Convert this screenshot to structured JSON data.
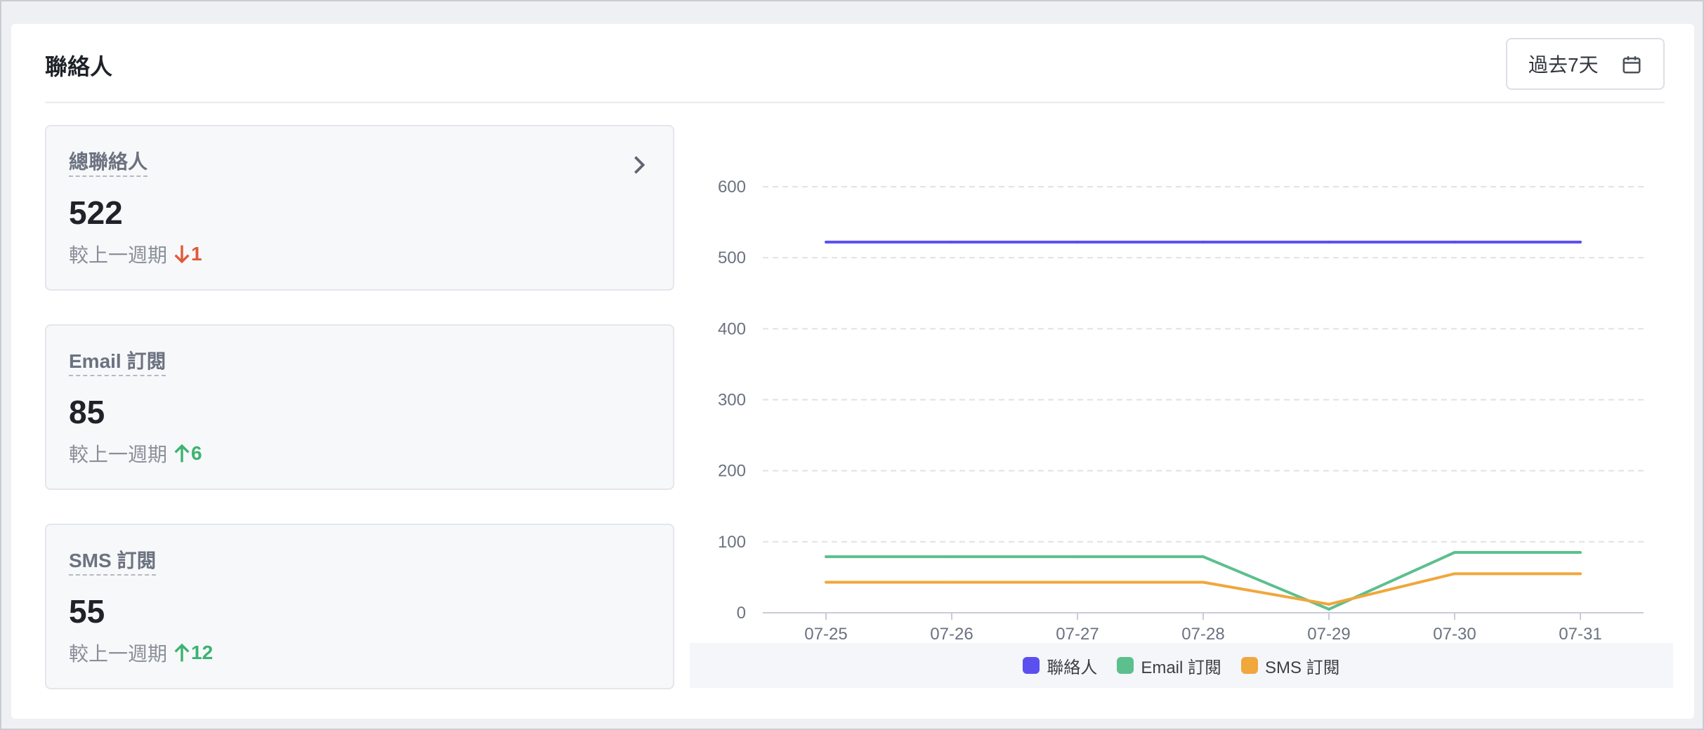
{
  "panel": {
    "title": "聯絡人"
  },
  "range_selector": {
    "label": "過去7天",
    "icon": "calendar-icon"
  },
  "cards": [
    {
      "label": "總聯絡人",
      "value": "522",
      "compare_label": "較上一週期",
      "delta": "1",
      "direction": "down",
      "has_link": true
    },
    {
      "label": "Email 訂閱",
      "value": "85",
      "compare_label": "較上一週期",
      "delta": "6",
      "direction": "up",
      "has_link": false
    },
    {
      "label": "SMS 訂閱",
      "value": "55",
      "compare_label": "較上一週期",
      "delta": "12",
      "direction": "up",
      "has_link": false
    }
  ],
  "colors": {
    "contacts": "#5b4ff0",
    "email": "#5cbf8e",
    "sms": "#f0a73c",
    "down": "#e05a3a",
    "up": "#3cb371"
  },
  "chart_data": {
    "type": "line",
    "x": [
      "07-25",
      "07-26",
      "07-27",
      "07-28",
      "07-29",
      "07-30",
      "07-31"
    ],
    "ylim": [
      0,
      600
    ],
    "yticks": [
      0,
      100,
      200,
      300,
      400,
      500,
      600
    ],
    "grid": true,
    "legend_position": "bottom",
    "series": [
      {
        "name": "聯絡人",
        "color": "#5b4ff0",
        "values": [
          522,
          522,
          522,
          522,
          522,
          522,
          522
        ]
      },
      {
        "name": "Email 訂閱",
        "color": "#5cbf8e",
        "values": [
          79,
          79,
          79,
          79,
          5,
          85,
          85
        ]
      },
      {
        "name": "SMS 訂閱",
        "color": "#f0a73c",
        "values": [
          43,
          43,
          43,
          43,
          12,
          55,
          55
        ]
      }
    ]
  }
}
